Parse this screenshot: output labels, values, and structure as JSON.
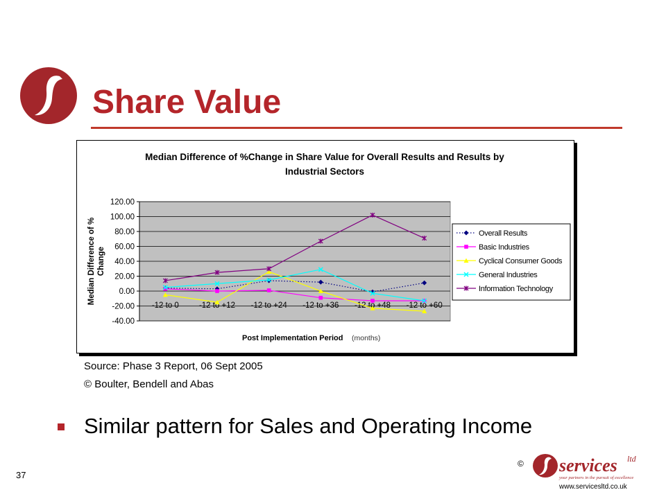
{
  "slide": {
    "title": "Share Value",
    "source": "Source: Phase 3 Report, 06 Sept 2005",
    "copyright": "© Boulter, Bendell and Abas",
    "bullet": "Similar pattern for Sales and Operating Income",
    "page_number": "37",
    "footer_copyright": "©",
    "footer_brand": "services",
    "footer_brand_suffix": "ltd",
    "footer_tagline": "your partners in the pursuit of excellence",
    "footer_url": "www.servicesltd.co.uk",
    "colors": {
      "title": "#b4252a",
      "logo": "#a3262b",
      "rule": "#c0392b"
    }
  },
  "chart_data": {
    "type": "line",
    "title_lines": [
      "Median Difference of %Change in Share Value for Overall Results and Results by",
      "Industrial Sectors"
    ],
    "xlabel": "Post Implementation Period",
    "xlabel_suffix": "(months)",
    "ylabel_lines": [
      "Median Difference of %",
      "Change"
    ],
    "categories": [
      "-12 to 0",
      "-12 to +12",
      "-12 to +24",
      "-12 to +36",
      "-12 to +48",
      "-12 to +60"
    ],
    "ylim": [
      -40,
      120
    ],
    "yticks": [
      "120.00",
      "100.00",
      "80.00",
      "60.00",
      "40.00",
      "20.00",
      "0.00",
      "-20.00",
      "-40.00"
    ],
    "plot_background": "#c0c0c0",
    "grid": true,
    "legend_position": "right",
    "series": [
      {
        "name": "Overall Results",
        "values": [
          4,
          3,
          14,
          12,
          -1,
          11
        ],
        "color": "#000080",
        "marker": "diamond",
        "dash": "dotted"
      },
      {
        "name": "Basic Industries",
        "values": [
          3,
          0,
          1,
          -9,
          -13,
          -13
        ],
        "color": "#ff00ff",
        "marker": "square",
        "dash": "solid"
      },
      {
        "name": "Cyclical Consumer Goods",
        "values": [
          -5,
          -15,
          26,
          0,
          -23,
          -27
        ],
        "color": "#ffff00",
        "marker": "triangle",
        "dash": "solid"
      },
      {
        "name": "General Industries",
        "values": [
          5,
          10,
          15,
          29,
          -3,
          -13
        ],
        "color": "#00ffff",
        "marker": "x",
        "dash": "solid"
      },
      {
        "name": "Information Technology",
        "values": [
          14,
          25,
          30,
          67,
          102,
          71
        ],
        "color": "#800080",
        "marker": "star",
        "dash": "solid"
      }
    ]
  }
}
